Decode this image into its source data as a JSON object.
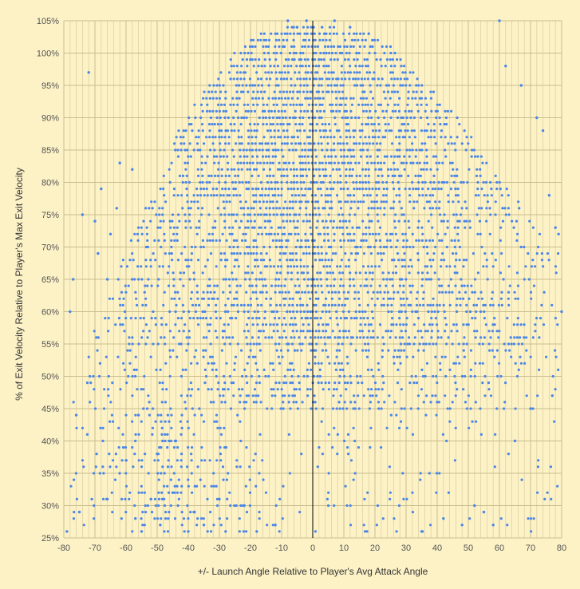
{
  "chart_data": {
    "type": "scatter",
    "title": "",
    "xlabel": "+/- Launch Angle Relative to Player's Avg Attack Angle",
    "ylabel": "% of Exit Velocity Relative to Player's Max Exit Velocity",
    "xlim": [
      -80,
      80
    ],
    "ylim": [
      25,
      105
    ],
    "x_ticks": [
      -80,
      -70,
      -60,
      -50,
      -40,
      -30,
      -20,
      -10,
      0,
      10,
      20,
      30,
      40,
      50,
      60,
      70,
      80
    ],
    "x_tick_labels": [
      "-80",
      "-70",
      "-60",
      "-50",
      "-40",
      "-30",
      "-20",
      "-10",
      "0",
      "10",
      "20",
      "30",
      "40",
      "50",
      "60",
      "70",
      "80"
    ],
    "y_ticks": [
      25,
      30,
      35,
      40,
      45,
      50,
      55,
      60,
      65,
      70,
      75,
      80,
      85,
      90,
      95,
      100,
      105
    ],
    "y_tick_labels": [
      "25%",
      "30%",
      "35%",
      "40%",
      "45%",
      "50%",
      "55%",
      "60%",
      "65%",
      "70%",
      "75%",
      "80%",
      "85%",
      "90%",
      "95%",
      "100%",
      "105%"
    ],
    "grid": true,
    "reference_line_x": 0,
    "series": [
      {
        "color": "#4a86e8",
        "description_of_distribution": "dense cloud of points at integer y values; densest near x=0 and y=75-95",
        "points": [
          [
            -79,
            26
          ],
          [
            -78,
            60
          ],
          [
            -77,
            65
          ],
          [
            -76,
            44
          ],
          [
            -75,
            29
          ],
          [
            -74,
            75
          ],
          [
            -72,
            97
          ],
          [
            -71,
            31
          ],
          [
            -70,
            74
          ],
          [
            -69,
            69
          ],
          [
            -68,
            79
          ],
          [
            -66,
            65
          ],
          [
            -65,
            72
          ],
          [
            -63,
            76
          ],
          [
            -62,
            83
          ],
          [
            -58,
            82
          ],
          [
            -57,
            28
          ],
          [
            -55,
            26
          ],
          [
            -52,
            31
          ],
          [
            -49,
            27
          ],
          [
            -45,
            32
          ],
          [
            -40,
            26
          ],
          [
            -38,
            29
          ],
          [
            -35,
            27
          ],
          [
            -30,
            31
          ],
          [
            -28,
            26
          ],
          [
            -22,
            30
          ],
          [
            -18,
            26
          ],
          [
            -12,
            27
          ],
          [
            -8,
            105
          ],
          [
            -5,
            104
          ],
          [
            -2,
            105
          ],
          [
            3,
            104
          ],
          [
            7,
            105
          ],
          [
            12,
            104
          ],
          [
            18,
            103
          ],
          [
            25,
            101
          ],
          [
            35,
            26
          ],
          [
            42,
            28
          ],
          [
            48,
            27
          ],
          [
            52,
            30
          ],
          [
            55,
            29
          ],
          [
            58,
            27
          ],
          [
            60,
            105
          ],
          [
            62,
            98
          ],
          [
            65,
            40
          ],
          [
            67,
            95
          ],
          [
            70,
            45
          ],
          [
            72,
            90
          ],
          [
            74,
            88
          ],
          [
            76,
            78
          ],
          [
            77,
            47
          ],
          [
            78,
            73
          ],
          [
            79,
            72
          ],
          [
            80,
            60
          ],
          [
            -66,
            31
          ],
          [
            -60,
            37
          ],
          [
            -56,
            44
          ],
          [
            -50,
            38
          ],
          [
            -44,
            40
          ]
        ]
      }
    ]
  }
}
